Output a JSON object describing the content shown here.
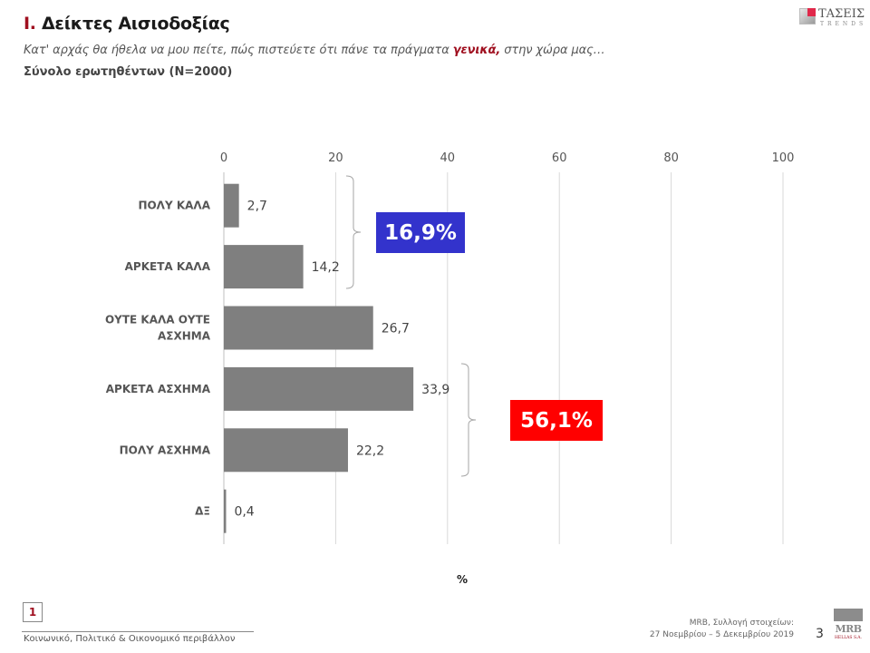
{
  "header": {
    "title_number": "I.",
    "title_text": "Δείκτες Αισιοδοξίας",
    "question_before": "Κατ' αρχάς θα ήθελα να μου πείτε, πώς πιστεύετε ότι πάνε τα πράγματα ",
    "question_highlight": "γενικά,",
    "question_after": " στην χώρα μας…",
    "base": "Σύνολο ερωτηθέντων (N=2000)",
    "logo_name": "ΤΑΣΕΙΣ",
    "logo_sub": "TRENDS"
  },
  "chart_data": {
    "type": "bar",
    "orientation": "horizontal",
    "categories": [
      "ΠΟΛΥ ΚΑΛΑ",
      "ΑΡΚΕΤΑ ΚΑΛΑ",
      "ΟΥΤΕ ΚΑΛΑ ΟΥΤΕ ΑΣΧΗΜΑ",
      "ΑΡΚΕΤΑ ΑΣΧΗΜΑ",
      "ΠΟΛΥ ΑΣΧΗΜΑ",
      "ΔΞ"
    ],
    "category_lines": [
      [
        "ΠΟΛΥ ΚΑΛΑ"
      ],
      [
        "ΑΡΚΕΤΑ ΚΑΛΑ"
      ],
      [
        "ΟΥΤΕ ΚΑΛΑ ΟΥΤΕ",
        "ΑΣΧΗΜΑ"
      ],
      [
        "ΑΡΚΕΤΑ ΑΣΧΗΜΑ"
      ],
      [
        "ΠΟΛΥ ΑΣΧΗΜΑ"
      ],
      [
        "ΔΞ"
      ]
    ],
    "values": [
      2.7,
      14.2,
      26.7,
      33.9,
      22.2,
      0.4
    ],
    "value_labels": [
      "2,7",
      "14,2",
      "26,7",
      "33,9",
      "22,2",
      "0,4"
    ],
    "xlim": [
      0,
      100
    ],
    "xticks": [
      0,
      20,
      40,
      60,
      80,
      100
    ],
    "xlabel": "%",
    "grid": true,
    "bar_color": "#7f7f7f",
    "annotations": [
      {
        "label": "16,9%",
        "groups": [
          0,
          1
        ],
        "color": "#3333cc"
      },
      {
        "label": "56,1%",
        "groups": [
          3,
          4
        ],
        "color": "#ff0000"
      }
    ]
  },
  "footer": {
    "chapter_number": "1",
    "section": "Κοινωνικό, Πολιτικό & Οικονομικό περιβάλλον",
    "source_line1": "MRB, Συλλογή στοιχείων:",
    "source_line2": "27 Νοεμβρίου – 5 Δεκεμβρίου 2019",
    "page_number": "3",
    "logo_name": "MRB",
    "logo_sub": "HELLAS S.A."
  }
}
